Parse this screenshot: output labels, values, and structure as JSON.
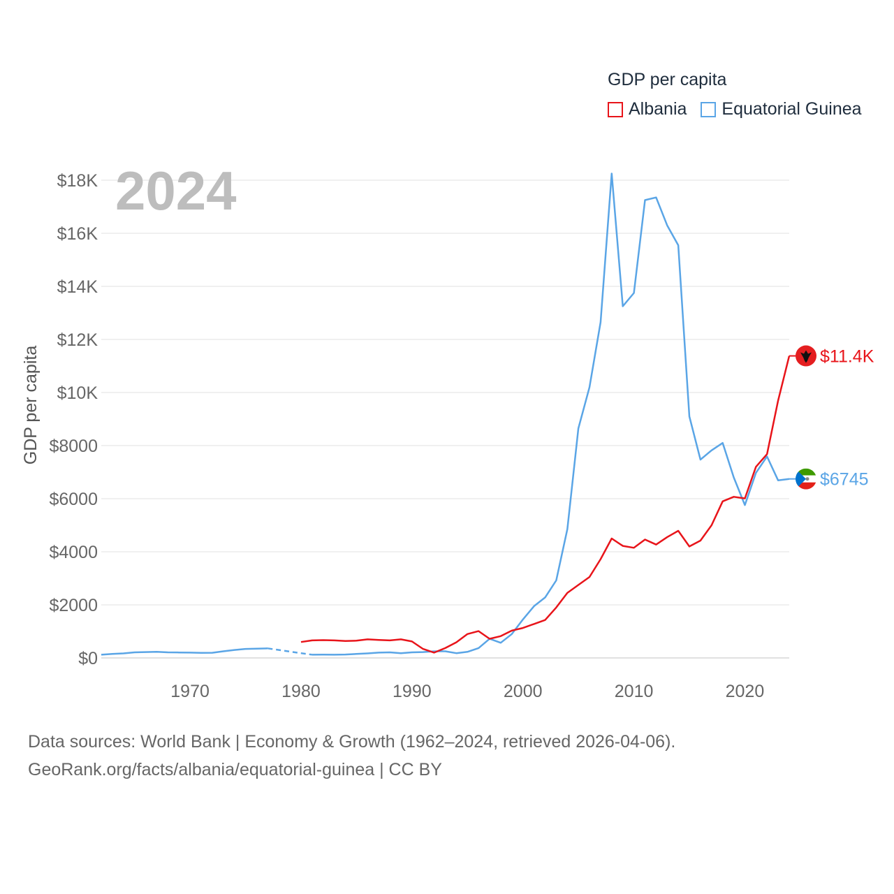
{
  "legend": {
    "title": "GDP per capita",
    "items": [
      {
        "name": "Albania",
        "color": "#e8141a"
      },
      {
        "name": "Equatorial Guinea",
        "color": "#5aa5e6"
      }
    ]
  },
  "year_watermark": "2024",
  "footer": {
    "line1": "Data sources: World Bank | Economy & Growth (1962–2024, retrieved 2026-04-06).",
    "line2": "GeoRank.org/facts/albania/equatorial-guinea | CC BY"
  },
  "chart_data": {
    "type": "line",
    "title": "GDP per capita",
    "xlabel": "",
    "ylabel": "GDP per capita",
    "xlim": [
      1962,
      2024
    ],
    "ylim": [
      0,
      18000
    ],
    "x_ticks": [
      1970,
      1980,
      1990,
      2000,
      2010,
      2020
    ],
    "x_tick_labels": [
      "1970",
      "1980",
      "1990",
      "2000",
      "2010",
      "2020"
    ],
    "y_ticks": [
      0,
      2000,
      4000,
      6000,
      8000,
      10000,
      12000,
      14000,
      16000,
      18000
    ],
    "y_tick_labels": [
      "$0",
      "$2000",
      "$4000",
      "$6000",
      "$8000",
      "$10K",
      "$12K",
      "$14K",
      "$16K",
      "$18K"
    ],
    "grid": true,
    "series": [
      {
        "name": "Albania",
        "color": "#e8141a",
        "end_label": "$11.4K",
        "points": [
          [
            1980,
            600
          ],
          [
            1981,
            660
          ],
          [
            1982,
            670
          ],
          [
            1983,
            660
          ],
          [
            1984,
            640
          ],
          [
            1985,
            650
          ],
          [
            1986,
            700
          ],
          [
            1987,
            680
          ],
          [
            1988,
            660
          ],
          [
            1989,
            700
          ],
          [
            1990,
            620
          ],
          [
            1991,
            340
          ],
          [
            1992,
            200
          ],
          [
            1993,
            370
          ],
          [
            1994,
            590
          ],
          [
            1995,
            900
          ],
          [
            1996,
            1010
          ],
          [
            1997,
            720
          ],
          [
            1998,
            820
          ],
          [
            1999,
            1030
          ],
          [
            2000,
            1130
          ],
          [
            2001,
            1280
          ],
          [
            2002,
            1430
          ],
          [
            2003,
            1900
          ],
          [
            2004,
            2450
          ],
          [
            2005,
            2750
          ],
          [
            2006,
            3050
          ],
          [
            2007,
            3720
          ],
          [
            2008,
            4500
          ],
          [
            2009,
            4220
          ],
          [
            2010,
            4150
          ],
          [
            2011,
            4460
          ],
          [
            2012,
            4270
          ],
          [
            2013,
            4550
          ],
          [
            2014,
            4790
          ],
          [
            2015,
            4200
          ],
          [
            2016,
            4420
          ],
          [
            2017,
            5000
          ],
          [
            2018,
            5900
          ],
          [
            2019,
            6070
          ],
          [
            2020,
            6010
          ],
          [
            2021,
            7200
          ],
          [
            2022,
            7680
          ],
          [
            2023,
            9700
          ],
          [
            2024,
            11380
          ]
        ]
      },
      {
        "name": "Equatorial Guinea",
        "color": "#5aa5e6",
        "end_label": "$6745",
        "segments": [
          {
            "style": "solid",
            "points": [
              [
                1962,
                120
              ],
              [
                1963,
                150
              ],
              [
                1964,
                170
              ],
              [
                1965,
                210
              ],
              [
                1966,
                220
              ],
              [
                1967,
                230
              ],
              [
                1968,
                210
              ],
              [
                1969,
                205
              ],
              [
                1970,
                200
              ],
              [
                1971,
                190
              ],
              [
                1972,
                195
              ],
              [
                1973,
                250
              ],
              [
                1974,
                300
              ],
              [
                1975,
                340
              ],
              [
                1976,
                350
              ],
              [
                1977,
                360
              ]
            ]
          },
          {
            "style": "dashed",
            "points": [
              [
                1977,
                360
              ],
              [
                1980,
                180
              ],
              [
                1981,
                120
              ]
            ]
          },
          {
            "style": "solid",
            "points": [
              [
                1981,
                120
              ],
              [
                1982,
                125
              ],
              [
                1983,
                120
              ],
              [
                1984,
                130
              ],
              [
                1985,
                150
              ],
              [
                1986,
                170
              ],
              [
                1987,
                200
              ],
              [
                1988,
                210
              ],
              [
                1989,
                180
              ],
              [
                1990,
                210
              ],
              [
                1991,
                220
              ],
              [
                1992,
                250
              ],
              [
                1993,
                250
              ],
              [
                1994,
                180
              ],
              [
                1995,
                230
              ],
              [
                1996,
                370
              ],
              [
                1997,
                720
              ],
              [
                1998,
                570
              ],
              [
                1999,
                900
              ],
              [
                2000,
                1450
              ],
              [
                2001,
                1950
              ],
              [
                2002,
                2280
              ],
              [
                2003,
                2920
              ],
              [
                2004,
                4850
              ],
              [
                2005,
                8650
              ],
              [
                2006,
                10200
              ],
              [
                2007,
                12650
              ],
              [
                2008,
                18250
              ],
              [
                2009,
                13250
              ],
              [
                2010,
                13750
              ],
              [
                2011,
                17250
              ],
              [
                2012,
                17350
              ],
              [
                2013,
                16300
              ],
              [
                2014,
                15550
              ],
              [
                2015,
                9100
              ],
              [
                2016,
                7470
              ],
              [
                2017,
                7820
              ],
              [
                2018,
                8100
              ],
              [
                2019,
                6800
              ],
              [
                2020,
                5760
              ],
              [
                2021,
                6970
              ],
              [
                2022,
                7590
              ],
              [
                2023,
                6690
              ],
              [
                2024,
                6745
              ]
            ]
          }
        ]
      }
    ]
  }
}
